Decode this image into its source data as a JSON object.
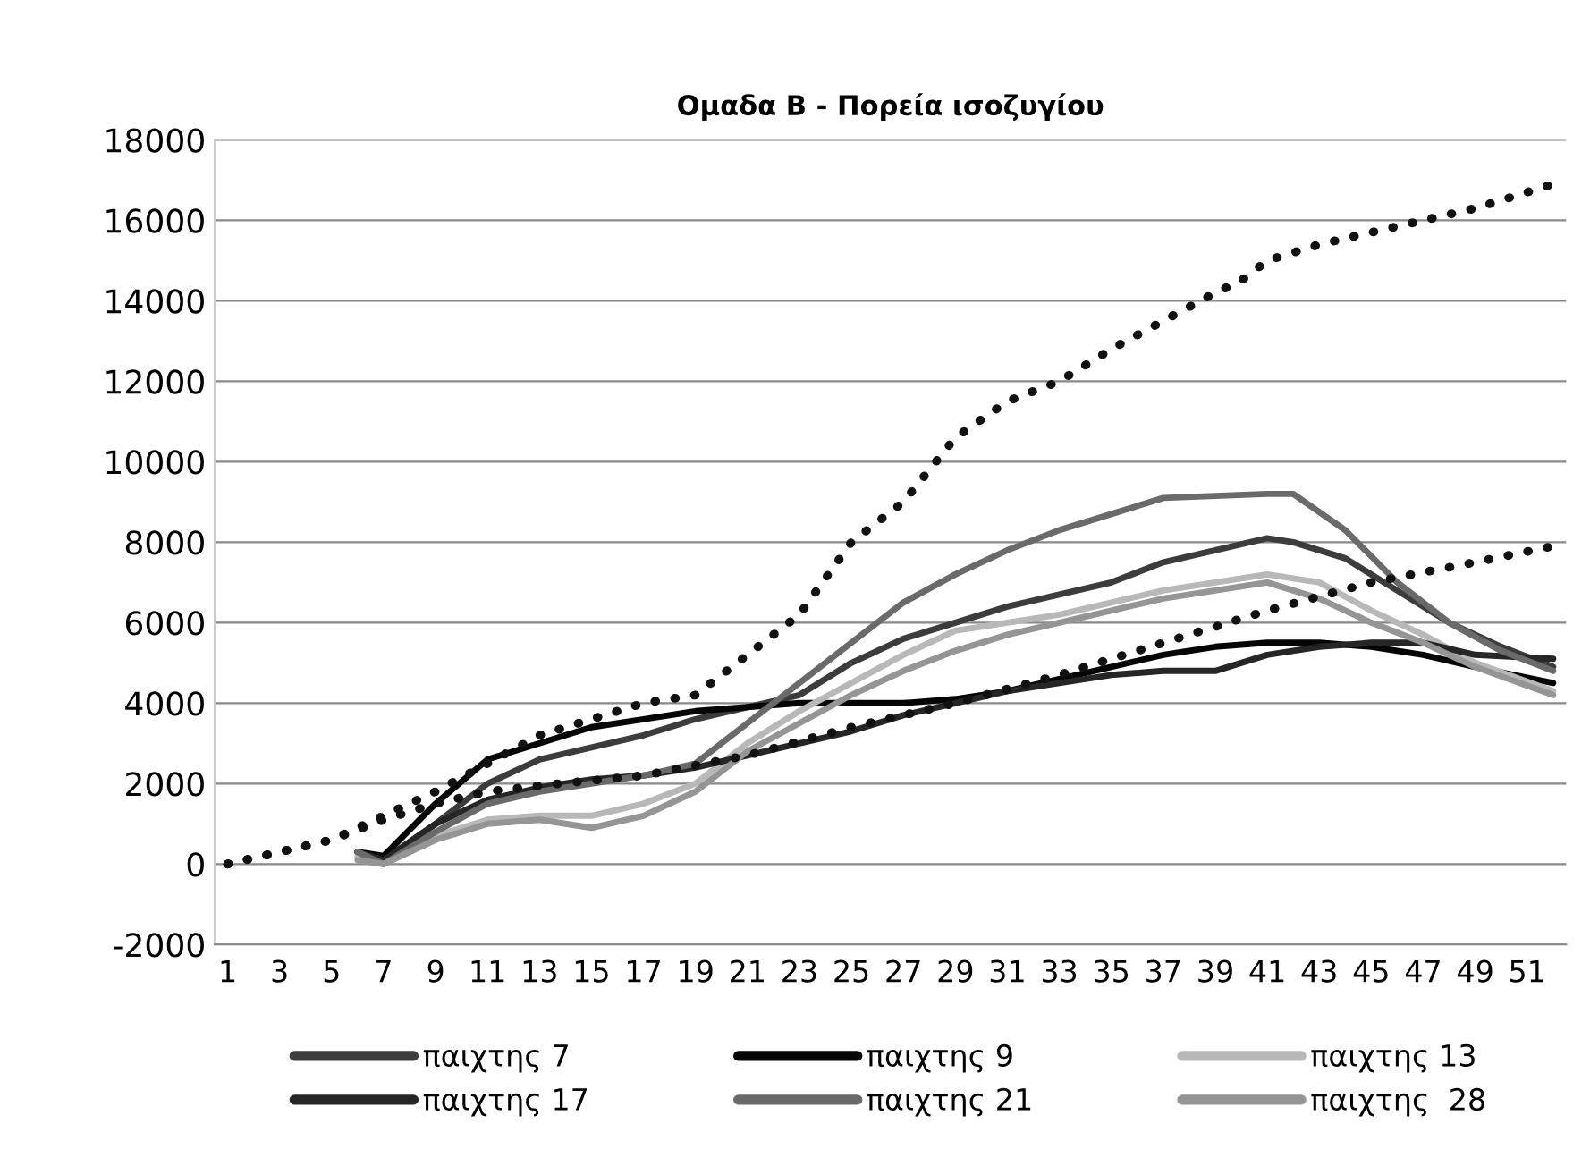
{
  "chart_data": {
    "type": "line",
    "title": "Ομαδα Β - Πορεία ισοζυγίου",
    "xlim": [
      0.5,
      52.5
    ],
    "xticks": [
      1,
      3,
      5,
      7,
      9,
      11,
      13,
      15,
      17,
      19,
      21,
      23,
      25,
      27,
      29,
      31,
      33,
      35,
      37,
      39,
      41,
      43,
      45,
      47,
      49,
      51
    ],
    "ylim": [
      -2000,
      18000
    ],
    "yticks": [
      -2000,
      0,
      2000,
      4000,
      6000,
      8000,
      10000,
      12000,
      14000,
      16000,
      18000
    ],
    "grid": "y",
    "legend": "bottom",
    "marker": "none",
    "line_style": "solid",
    "series": [
      {
        "name": "παιχτης 7",
        "color": "#3c3c3c",
        "x": [
          6,
          7,
          9,
          11,
          13,
          15,
          17,
          19,
          21,
          23,
          25,
          27,
          29,
          31,
          33,
          35,
          37,
          39,
          41,
          42,
          44,
          46,
          48,
          50,
          52
        ],
        "values": [
          300,
          100,
          1000,
          2000,
          2600,
          2900,
          3200,
          3600,
          3900,
          4200,
          5000,
          5600,
          6000,
          6400,
          6700,
          7000,
          7500,
          7800,
          8100,
          8000,
          7600,
          6800,
          6000,
          5400,
          4900
        ]
      },
      {
        "name": "παιχτης 9",
        "color": "#050505",
        "x": [
          6,
          7,
          9,
          11,
          13,
          15,
          17,
          19,
          21,
          23,
          25,
          27,
          29,
          31,
          33,
          35,
          37,
          39,
          41,
          43,
          45,
          47,
          49,
          52
        ],
        "values": [
          300,
          200,
          1500,
          2600,
          3000,
          3400,
          3600,
          3800,
          3900,
          4000,
          4000,
          4000,
          4100,
          4300,
          4600,
          4900,
          5200,
          5400,
          5500,
          5500,
          5400,
          5200,
          4900,
          4500
        ]
      },
      {
        "name": "παιχτης 13",
        "color": "#b8b8b8",
        "x": [
          6,
          7,
          9,
          11,
          13,
          15,
          17,
          19,
          21,
          23,
          25,
          27,
          29,
          31,
          33,
          35,
          37,
          39,
          41,
          43,
          45,
          47,
          49,
          52
        ],
        "values": [
          200,
          0,
          700,
          1100,
          1200,
          1200,
          1500,
          2000,
          3000,
          3800,
          4500,
          5200,
          5800,
          6000,
          6200,
          6500,
          6800,
          7000,
          7200,
          7000,
          6300,
          5700,
          5000,
          4300
        ]
      },
      {
        "name": "παιχτης 17",
        "color": "#262626",
        "x": [
          6,
          7,
          9,
          11,
          13,
          15,
          17,
          19,
          21,
          23,
          25,
          27,
          29,
          31,
          33,
          35,
          37,
          39,
          41,
          43,
          45,
          47,
          49,
          52
        ],
        "values": [
          300,
          100,
          1000,
          1600,
          1900,
          2100,
          2200,
          2400,
          2700,
          3000,
          3300,
          3700,
          4000,
          4300,
          4500,
          4700,
          4800,
          4800,
          5200,
          5400,
          5500,
          5500,
          5200,
          5100
        ]
      },
      {
        "name": "παιχτης 21",
        "color": "#6a6a6a",
        "x": [
          6,
          7,
          9,
          11,
          13,
          15,
          17,
          19,
          21,
          23,
          25,
          27,
          29,
          31,
          33,
          35,
          37,
          39,
          41,
          42,
          44,
          46,
          48,
          50,
          52
        ],
        "values": [
          300,
          0,
          800,
          1500,
          1800,
          2000,
          2200,
          2500,
          3500,
          4500,
          5500,
          6500,
          7200,
          7800,
          8300,
          8700,
          9100,
          9150,
          9200,
          9200,
          8300,
          7000,
          6000,
          5300,
          4800
        ]
      },
      {
        "name": "παιχτης  28",
        "color": "#959595",
        "x": [
          6,
          7,
          9,
          11,
          13,
          15,
          17,
          19,
          21,
          23,
          25,
          27,
          29,
          31,
          33,
          35,
          37,
          39,
          41,
          43,
          45,
          47,
          49,
          52
        ],
        "values": [
          100,
          0,
          600,
          1000,
          1100,
          900,
          1200,
          1800,
          2800,
          3500,
          4200,
          4800,
          5300,
          5700,
          6000,
          6300,
          6600,
          6800,
          7000,
          6600,
          6000,
          5500,
          4900,
          4200
        ]
      },
      {
        "color": "#111111",
        "line_style": "dotted",
        "x": [
          1,
          5,
          9,
          13,
          17,
          19,
          21,
          23,
          25,
          27,
          29,
          31,
          33,
          35,
          37,
          39,
          40,
          41,
          43,
          45,
          47,
          49,
          52
        ],
        "values": [
          0,
          600,
          1800,
          3200,
          4000,
          4200,
          5200,
          6200,
          8000,
          9000,
          10600,
          11500,
          12000,
          12800,
          13500,
          14200,
          14500,
          15000,
          15400,
          15700,
          16000,
          16300,
          16900
        ]
      },
      {
        "color": "#111111",
        "line_style": "dotted",
        "x": [
          1,
          5,
          7,
          9,
          11,
          13,
          17,
          21,
          25,
          29,
          33,
          37,
          41,
          45,
          49,
          52
        ],
        "values": [
          0,
          600,
          1100,
          1500,
          1800,
          1950,
          2200,
          2700,
          3400,
          4000,
          4700,
          5500,
          6300,
          7000,
          7500,
          7900
        ]
      }
    ]
  }
}
